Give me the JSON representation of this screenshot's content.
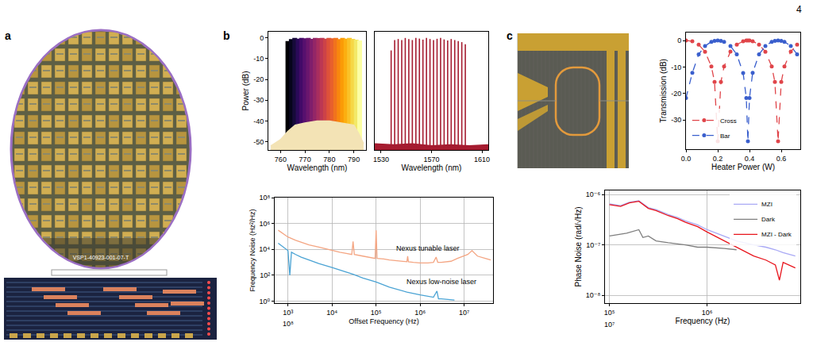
{
  "page_number": "4",
  "panel_labels": [
    "a",
    "b",
    "c"
  ],
  "wafer_marking": "VSP1-40923-001-07-T",
  "chart_data": [
    {
      "type": "line",
      "x_label": "Wavelength (nm)",
      "y_label": "Power (dB)",
      "xlim": [
        755,
        795
      ],
      "xticks": [
        760,
        770,
        780,
        790
      ],
      "ylim": [
        -54,
        3
      ],
      "yticks": [
        0,
        -10,
        -20,
        -30,
        -40,
        -50
      ],
      "grid": false,
      "series": [
        {
          "type": "stem",
          "x": [
            763,
            764.4,
            765.8,
            767.2,
            768.6,
            770,
            771.4,
            772.8,
            774.2,
            775.6,
            777,
            778.4,
            779.8,
            781.2,
            782.6,
            784,
            785.4,
            786.8,
            788.2,
            789.6,
            791,
            792.4
          ],
          "values": [
            -1.5,
            -0.5,
            0,
            -0.3,
            0,
            -0.2,
            0,
            -0.4,
            0,
            -0.1,
            0,
            -0.3,
            0,
            -0.2,
            0,
            -0.5,
            0,
            -0.3,
            0,
            -0.4,
            -0.8,
            -1.2
          ],
          "colors": [
            "#000004",
            "#07051b",
            "#160b39",
            "#2a0a58",
            "#420a68",
            "#57106e",
            "#6a176e",
            "#7f1e6c",
            "#932667",
            "#a82e5f",
            "#bc3754",
            "#cc4248",
            "#dd513a",
            "#e8602d",
            "#f1731d",
            "#f8870e",
            "#fb9b06",
            "#fcaf10",
            "#fac228",
            "#f6d746",
            "#f3e968",
            "#fcffa4"
          ]
        },
        {
          "type": "area",
          "color": "#f3e3b5",
          "x": [
            756,
            760,
            763,
            766,
            770,
            775,
            780,
            785,
            790,
            792,
            794
          ],
          "values": [
            -52,
            -49,
            -45,
            -42,
            -41,
            -40,
            -40,
            -41,
            -42,
            -46,
            -51
          ]
        }
      ]
    },
    {
      "type": "line",
      "x_label": "Wavelength (nm)",
      "xlim": [
        1525,
        1615
      ],
      "xticks": [
        1530,
        1570,
        1610
      ],
      "ylim": [
        -54,
        3
      ],
      "tick_labels": "x",
      "grid": false,
      "series": [
        {
          "type": "area",
          "color": "#a51c30",
          "x": [
            1525,
            1540,
            1555,
            1570,
            1585,
            1600,
            1615
          ],
          "values": [
            -51,
            -51.5,
            -51,
            -52,
            -51.5,
            -52,
            -51.5
          ]
        },
        {
          "type": "stem",
          "color": "#a51c30",
          "x": [
            1538.0,
            1540.8,
            1543.6,
            1546.4,
            1549.2,
            1552.0,
            1554.8,
            1557.6,
            1560.4,
            1563.2,
            1566.0,
            1568.8,
            1571.6,
            1574.4,
            1577.2,
            1580.0,
            1582.8,
            1585.6,
            1588.4,
            1591.2,
            1594.0,
            1596.8
          ],
          "values": [
            -6,
            -1,
            -0.5,
            -1,
            0,
            -0.5,
            -1,
            0,
            -0.3,
            -0.8,
            0,
            -0.5,
            -1,
            -0.4,
            0,
            -0.7,
            -1.2,
            -0.5,
            -1,
            -1.5,
            -2,
            -3
          ]
        }
      ]
    },
    {
      "type": "line",
      "x_label": "Offset Frequency (Hz)",
      "y_label": "Frequency Noise (Hz²/Hz)",
      "log": true,
      "grid": true,
      "xlim": [
        500,
        45000000
      ],
      "xticks": [
        {
          "value": 1000,
          "label": "10³"
        },
        {
          "value": 10000,
          "label": "10⁴"
        },
        {
          "value": 100000,
          "label": "10⁵"
        },
        {
          "value": 1000000,
          "label": "10⁶"
        },
        {
          "value": 10000000,
          "label": "10⁷"
        }
      ],
      "ylim": [
        0.7,
        100000000
      ],
      "yticks": [
        {
          "value": 1,
          "label": "10⁰"
        },
        {
          "value": 100,
          "label": "10²"
        },
        {
          "value": 10000,
          "label": "10⁴"
        },
        {
          "value": 1000000,
          "label": "10⁶"
        },
        {
          "value": 100000000,
          "label": "10⁸"
        }
      ],
      "series": [
        {
          "color": "#f4a582",
          "x": [
            600,
            800,
            1000,
            1500,
            2000,
            3000,
            5000,
            7000,
            10000,
            15000,
            20000,
            28000,
            30000,
            32000,
            50000,
            70000,
            95000,
            100000,
            105000,
            150000,
            200000,
            300000,
            500000,
            520000,
            540000,
            700000,
            1000000,
            1500000,
            2000000,
            2300000,
            2500000,
            3000000,
            5000000,
            7000000,
            10000000,
            12000000,
            15000000,
            20000000,
            30000000,
            40000000
          ],
          "values": [
            300000,
            150000,
            90000,
            50000,
            35000,
            22000,
            15000,
            11000,
            8000,
            6000,
            5000,
            4000,
            40000,
            4000,
            3000,
            2500,
            2000,
            300000,
            2000,
            1800,
            1500,
            1300,
            1100,
            3000,
            1100,
            1000,
            900,
            900,
            1000,
            2500,
            1000,
            1000,
            1200,
            2000,
            3000,
            4000,
            8000,
            3000,
            2000,
            1500
          ]
        },
        {
          "color": "#4aa3d4",
          "x": [
            600,
            800,
            1000,
            1100,
            1200,
            1500,
            2000,
            3000,
            5000,
            10000,
            20000,
            30000,
            50000,
            100000,
            200000,
            300000,
            500000,
            1000000,
            2000000,
            2400000,
            2500000,
            2600000,
            3000000,
            5000000,
            6000000
          ],
          "values": [
            30000,
            15000,
            8000,
            100,
            6000,
            4000,
            2500,
            1500,
            800,
            400,
            200,
            120,
            60,
            30,
            12,
            8,
            5,
            3,
            2,
            6,
            2,
            1.5,
            1.5,
            1.2,
            1.2
          ]
        }
      ],
      "annotations": [
        {
          "text": "Nexus tunable laser",
          "x": 1500000,
          "y": 12000
        },
        {
          "text": "Nexus low-noise laser",
          "x": 3000000,
          "y": 30
        },
        {
          "text": "10⁸",
          "x": 1000
        }
      ]
    },
    {
      "type": "line",
      "x_label": "Heater Power (W)",
      "y_label": "Transmission (dB)",
      "grid": false,
      "legend": "lower left",
      "xlim": [
        0,
        0.72
      ],
      "xticks": [
        {
          "value": 0,
          "label": "0.0"
        },
        {
          "value": 0.2,
          "label": "0.2"
        },
        {
          "value": 0.4,
          "label": "0.4"
        },
        {
          "value": 0.6,
          "label": "0.6"
        }
      ],
      "ylim": [
        -41,
        3
      ],
      "yticks": [
        0,
        -10,
        -20,
        -30
      ],
      "series": [
        {
          "name": "Cross",
          "color": "#e0454a",
          "marker": "circle",
          "line_style": "dashed",
          "x": [
            0,
            0.04,
            0.08,
            0.12,
            0.16,
            0.18,
            0.2,
            0.22,
            0.24,
            0.28,
            0.32,
            0.36,
            0.38,
            0.39,
            0.4,
            0.42,
            0.46,
            0.5,
            0.54,
            0.56,
            0.58,
            0.6,
            0.62,
            0.66,
            0.7
          ],
          "values": [
            -0.03,
            -0.27,
            -1.54,
            -4.23,
            -9.77,
            -15.65,
            -38,
            -15.65,
            -9.78,
            -4.22,
            -1.56,
            -0.27,
            -0.03,
            0,
            -0.03,
            -0.27,
            -1.54,
            -4.23,
            -9.77,
            -15.65,
            -38,
            -15.65,
            -9.78,
            -4.22,
            -1.56
          ]
        },
        {
          "name": "Bar",
          "color": "#3a5fcd",
          "marker": "circle",
          "line_style": "dashed",
          "x": [
            0,
            0.04,
            0.08,
            0.12,
            0.16,
            0.18,
            0.2,
            0.22,
            0.24,
            0.28,
            0.32,
            0.36,
            0.38,
            0.39,
            0.4,
            0.42,
            0.46,
            0.5,
            0.54,
            0.56,
            0.58,
            0.6,
            0.62,
            0.66,
            0.7
          ],
          "values": [
            -21.7,
            -12.2,
            -5.24,
            -2.06,
            -0.48,
            -0.12,
            0,
            -0.12,
            -0.48,
            -2.06,
            -5.21,
            -12.24,
            -21.7,
            -38,
            -21.7,
            -12.2,
            -5.24,
            -2.06,
            -0.48,
            -0.12,
            0,
            -0.12,
            -0.48,
            -2.06,
            -5.21
          ]
        }
      ]
    },
    {
      "type": "line",
      "x_label": "Frequency (Hz)",
      "y_label": "Phase Noise (rad/√Hz)",
      "log": true,
      "grid": true,
      "legend": "upper right",
      "xlim": [
        90000,
        9000000
      ],
      "xticks": [
        {
          "value": 100000,
          "label": "10⁵"
        },
        {
          "value": 1000000,
          "label": "10⁶"
        }
      ],
      "ylim": [
        7e-09,
        1.2e-06
      ],
      "yticks": [
        {
          "value": 1e-08,
          "label": "10⁻⁸"
        },
        {
          "value": 1e-07,
          "label": "10⁻⁷"
        },
        {
          "value": 1e-06,
          "label": "10⁻⁶"
        }
      ],
      "series": [
        {
          "name": "MZI",
          "color": "#a9a9f5",
          "x": [
            100000,
            130000,
            160000,
            200000,
            250000,
            300000,
            400000,
            500000,
            600000,
            800000,
            1000000,
            1500000,
            2000000,
            3000000,
            4000000,
            5000000,
            6000000,
            8000000
          ],
          "values": [
            6.5e-07,
            6e-07,
            7e-07,
            7.5e-07,
            5.5e-07,
            5e-07,
            4e-07,
            3.5e-07,
            3e-07,
            2.5e-07,
            2e-07,
            1.5e-07,
            1.2e-07,
            1e-07,
            9e-08,
            8e-08,
            7e-08,
            6e-08
          ]
        },
        {
          "name": "Dark",
          "color": "#7f7f7f",
          "x": [
            100000,
            150000,
            200000,
            220000,
            250000,
            300000,
            400000,
            600000,
            800000,
            1000000,
            1500000,
            2000000
          ],
          "values": [
            1.5e-07,
            1.7e-07,
            2e-07,
            1.4e-07,
            1.5e-07,
            1.2e-07,
            1.1e-07,
            1e-07,
            9e-08,
            9e-08,
            8.5e-08,
            8e-08
          ]
        },
        {
          "name": "MZI - Dark",
          "color": "#e8141c",
          "x": [
            100000,
            130000,
            160000,
            200000,
            250000,
            300000,
            400000,
            500000,
            600000,
            800000,
            1000000,
            1500000,
            2000000,
            2500000,
            3000000,
            4000000,
            5000000,
            5500000,
            6000000,
            8000000
          ],
          "values": [
            6.3e-07,
            5.8e-07,
            6.8e-07,
            7.3e-07,
            5.3e-07,
            4.8e-07,
            3.8e-07,
            3.3e-07,
            2.8e-07,
            2.3e-07,
            1.8e-07,
            1.2e-07,
            9e-08,
            7e-08,
            6e-08,
            5e-08,
            4e-08,
            2e-08,
            4.5e-08,
            3.5e-08
          ]
        }
      ],
      "annotations": [
        {
          "text": "10⁷",
          "x": 100000
        }
      ]
    }
  ]
}
